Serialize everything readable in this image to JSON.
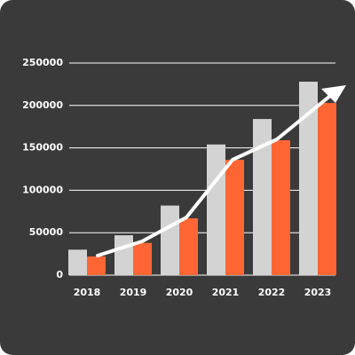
{
  "chart_data": {
    "type": "bar",
    "categories": [
      "2018",
      "2019",
      "2020",
      "2021",
      "2022",
      "2023"
    ],
    "series": [
      {
        "color": "#d3d3d3",
        "values": [
          30000,
          47000,
          82000,
          154000,
          184000,
          228000
        ]
      },
      {
        "color": "#ff6633",
        "values": [
          22000,
          38000,
          67000,
          136000,
          159000,
          203000
        ]
      }
    ],
    "ylim": [
      0,
      250000
    ],
    "yticks": [
      0,
      50000,
      100000,
      150000,
      200000,
      250000
    ],
    "grid": true
  }
}
